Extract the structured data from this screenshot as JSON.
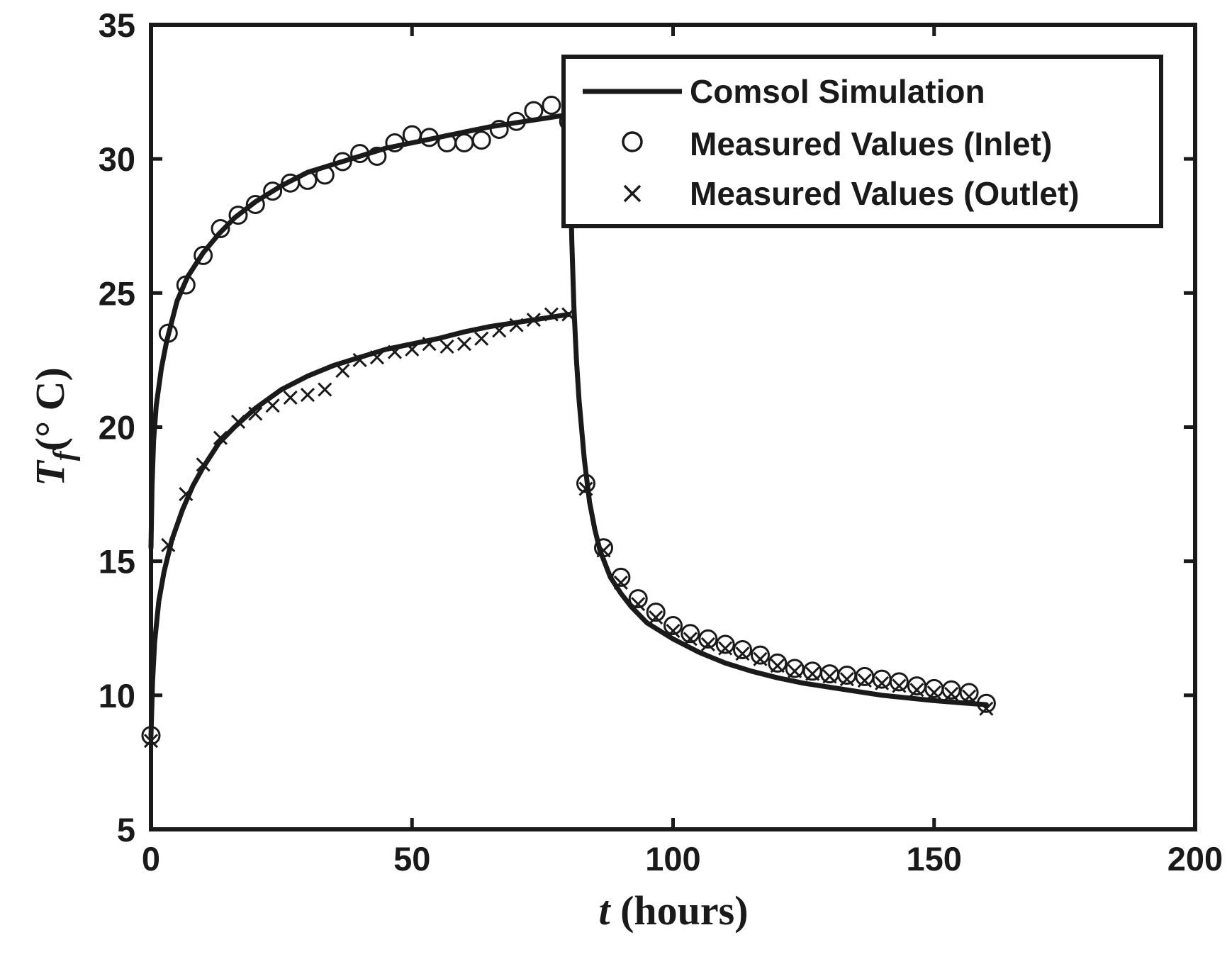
{
  "chart_data": {
    "type": "line",
    "title": "",
    "xlabel": {
      "var": "t",
      "rest": " (hours)"
    },
    "ylabel": {
      "var": "T",
      "sub": "f",
      "rest": "(° C)"
    },
    "xlim": [
      0,
      200
    ],
    "ylim": [
      5,
      35
    ],
    "xticks": [
      0,
      50,
      100,
      150,
      200
    ],
    "yticks": [
      5,
      10,
      15,
      20,
      25,
      30,
      35
    ],
    "grid": false,
    "legend_position": "top-right",
    "colors": {
      "ink": "#1a1a1a",
      "background": "#ffffff"
    },
    "series": [
      {
        "name": "Comsol Simulation",
        "kind": "line",
        "segments": [
          {
            "x": [
              0,
              0.2,
              0.5,
              1,
              2,
              3,
              5,
              7,
              10,
              13,
              16,
              20,
              25,
              30,
              35,
              40,
              45,
              50,
              55,
              60,
              65,
              70,
              75,
              80
            ],
            "y": [
              15.5,
              17.8,
              19.5,
              20.8,
              22.2,
              23.2,
              24.7,
              25.6,
              26.5,
              27.2,
              27.8,
              28.4,
              29.0,
              29.5,
              29.8,
              30.1,
              30.4,
              30.6,
              30.8,
              31.0,
              31.2,
              31.35,
              31.5,
              31.65
            ]
          },
          {
            "x": [
              0,
              0.3,
              0.7,
              1.5,
              2.5,
              4,
              6,
              8,
              10,
              13,
              16,
              20,
              25,
              30,
              35,
              40,
              45,
              50,
              55,
              60,
              65,
              70,
              75,
              80
            ],
            "y": [
              8.5,
              10.5,
              12.0,
              13.5,
              14.6,
              15.8,
              16.9,
              17.8,
              18.5,
              19.4,
              20.0,
              20.7,
              21.4,
              21.9,
              22.3,
              22.6,
              22.9,
              23.1,
              23.3,
              23.55,
              23.75,
              23.9,
              24.05,
              24.2
            ]
          },
          {
            "x": [
              80,
              80.3,
              80.6,
              81,
              81.5,
              82,
              83,
              84,
              85,
              86,
              88,
              90,
              92,
              95,
              100,
              105,
              110,
              115,
              120,
              125,
              130,
              135,
              140,
              145,
              150,
              155,
              160
            ],
            "y": [
              31.65,
              30.0,
              27.0,
              24.5,
              22.5,
              21.0,
              18.8,
              17.2,
              16.2,
              15.4,
              14.4,
              13.8,
              13.3,
              12.7,
              12.1,
              11.6,
              11.2,
              10.9,
              10.65,
              10.45,
              10.3,
              10.15,
              10.0,
              9.9,
              9.8,
              9.72,
              9.65
            ]
          }
        ]
      },
      {
        "name": "Measured Values (Inlet)",
        "kind": "marker",
        "marker": "circle",
        "x": [
          0,
          3.3,
          6.7,
          10,
          13.3,
          16.7,
          20,
          23.3,
          26.7,
          30,
          33.3,
          36.7,
          40,
          43.3,
          46.7,
          50,
          53.3,
          56.7,
          60,
          63.3,
          66.7,
          70,
          73.3,
          76.7,
          80,
          83.3,
          86.7,
          90,
          93.3,
          96.7,
          100,
          103.3,
          106.7,
          110,
          113.3,
          116.7,
          120,
          123.3,
          126.7,
          130,
          133.3,
          136.7,
          140,
          143.3,
          146.7,
          150,
          153.3,
          156.7,
          160
        ],
        "y": [
          8.5,
          23.5,
          25.3,
          26.4,
          27.4,
          27.9,
          28.3,
          28.8,
          29.1,
          29.2,
          29.4,
          29.9,
          30.2,
          30.1,
          30.6,
          30.9,
          30.8,
          30.6,
          30.6,
          30.7,
          31.1,
          31.4,
          31.8,
          32.0,
          31.4,
          17.9,
          15.5,
          14.4,
          13.6,
          13.1,
          12.6,
          12.3,
          12.1,
          11.9,
          11.7,
          11.5,
          11.2,
          11.0,
          10.9,
          10.8,
          10.75,
          10.7,
          10.6,
          10.5,
          10.35,
          10.25,
          10.2,
          10.1,
          9.7
        ]
      },
      {
        "name": "Measured Values (Outlet)",
        "kind": "marker",
        "marker": "x",
        "x": [
          0,
          3.3,
          6.7,
          10,
          13.3,
          16.7,
          20,
          23.3,
          26.7,
          30,
          33.3,
          36.7,
          40,
          43.3,
          46.7,
          50,
          53.3,
          56.7,
          60,
          63.3,
          66.7,
          70,
          73.3,
          76.7,
          80,
          83.3,
          86.7,
          90,
          93.3,
          96.7,
          100,
          103.3,
          106.7,
          110,
          113.3,
          116.7,
          120,
          123.3,
          126.7,
          130,
          133.3,
          136.7,
          140,
          143.3,
          146.7,
          150,
          153.3,
          156.7,
          160
        ],
        "y": [
          8.3,
          15.6,
          17.5,
          18.6,
          19.6,
          20.2,
          20.5,
          20.8,
          21.1,
          21.2,
          21.4,
          22.1,
          22.5,
          22.6,
          22.8,
          22.9,
          23.1,
          23.0,
          23.1,
          23.3,
          23.6,
          23.8,
          24.0,
          24.2,
          24.2,
          17.7,
          15.4,
          14.2,
          13.4,
          12.9,
          12.4,
          12.1,
          11.9,
          11.75,
          11.55,
          11.35,
          11.1,
          10.9,
          10.8,
          10.7,
          10.6,
          10.55,
          10.45,
          10.35,
          10.2,
          10.1,
          10.05,
          9.95,
          9.5
        ]
      }
    ]
  }
}
